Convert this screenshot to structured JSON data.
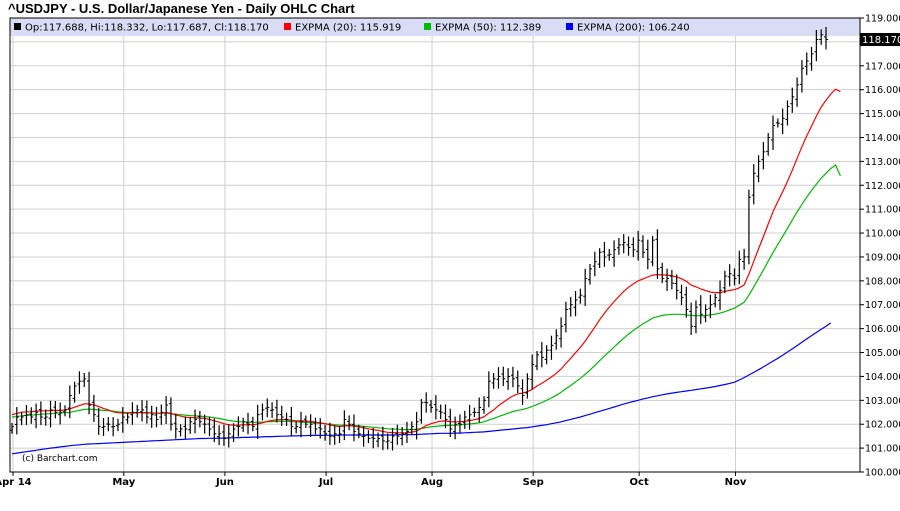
{
  "chart_data": {
    "type": "ohlc",
    "title": "^USDJPY - U.S. Dollar/Japanese Yen - Daily OHLC Chart",
    "legend": {
      "ohlc": "Op:117.688, Hi:118.332, Lo:117.687, Cl:118.170",
      "series": [
        {
          "label": "EXPMA (20): 115.919",
          "color": "#ff0000"
        },
        {
          "label": "EXPMA (50): 112.389",
          "color": "#00bb00"
        },
        {
          "label": "EXPMA (200): 106.240",
          "color": "#0000ff"
        }
      ]
    },
    "last_price": "118.170",
    "credit": "(c) Barchart.com",
    "ylim": [
      100.0,
      119.0
    ],
    "y_ticks": [
      "100.000",
      "101.000",
      "102.000",
      "103.000",
      "104.000",
      "105.000",
      "106.000",
      "107.000",
      "108.000",
      "109.000",
      "110.000",
      "111.000",
      "112.000",
      "113.000",
      "114.000",
      "115.000",
      "116.000",
      "117.000",
      "118.000",
      "119.000"
    ],
    "months": [
      "Apr 14",
      "May",
      "Jun",
      "Jul",
      "Aug",
      "Sep",
      "Oct",
      "Nov"
    ],
    "month_start_index": [
      0,
      23,
      44,
      65,
      87,
      108,
      130,
      150
    ],
    "n_bars": 170,
    "close": [
      101.9,
      102.3,
      102.3,
      102.4,
      102.3,
      102.5,
      102.3,
      102.3,
      102.6,
      102.5,
      102.5,
      102.6,
      103.2,
      103.6,
      103.8,
      103.9,
      102.8,
      102.4,
      101.9,
      101.9,
      102.0,
      101.9,
      102.0,
      102.3,
      102.3,
      102.5,
      102.6,
      102.6,
      102.3,
      102.4,
      102.2,
      102.5,
      102.8,
      102.0,
      101.8,
      101.8,
      101.8,
      102.1,
      102.2,
      102.1,
      102.0,
      101.8,
      101.6,
      101.6,
      101.4,
      101.6,
      101.8,
      101.9,
      102.1,
      102.0,
      101.9,
      102.4,
      102.6,
      102.7,
      102.6,
      102.4,
      102.3,
      102.2,
      101.9,
      101.9,
      102.1,
      102.0,
      102.0,
      101.8,
      101.8,
      101.6,
      101.5,
      101.6,
      101.6,
      102.2,
      102.0,
      101.7,
      101.6,
      101.5,
      101.4,
      101.4,
      101.4,
      101.3,
      101.3,
      101.5,
      101.5,
      101.6,
      101.7,
      101.9,
      102.1,
      102.9,
      102.9,
      102.7,
      102.6,
      102.5,
      102.2,
      101.8,
      102.0,
      102.0,
      102.3,
      102.4,
      102.5,
      102.7,
      103.0,
      103.8,
      103.9,
      104.0,
      103.9,
      104.0,
      103.9,
      103.6,
      103.2,
      103.9,
      104.5,
      104.9,
      104.8,
      105.1,
      105.3,
      105.7,
      106.1,
      106.8,
      107.0,
      107.2,
      107.4,
      108.1,
      108.5,
      108.8,
      109.2,
      109.0,
      109.1,
      109.3,
      109.5,
      109.6,
      109.4,
      109.3,
      109.7,
      109.2,
      108.9,
      109.7,
      108.5,
      108.1,
      108.1,
      107.9,
      107.6,
      107.3,
      106.8,
      106.1,
      106.9,
      106.6,
      106.8,
      107.0,
      107.3,
      107.6,
      108.2,
      108.3,
      108.1,
      108.9,
      109.0,
      111.5,
      112.5,
      113.0,
      113.4,
      114.0,
      114.5,
      114.6,
      114.8,
      115.3,
      115.7,
      116.2,
      116.9,
      117.2,
      117.5,
      118.1,
      118.3,
      118.1,
      117.9,
      117.6,
      118.2,
      118.17
    ],
    "expma20": [
      102.4,
      102.45,
      102.5,
      102.52,
      102.52,
      102.55,
      102.56,
      102.56,
      102.57,
      102.58,
      102.58,
      102.59,
      102.64,
      102.71,
      102.78,
      102.85,
      102.85,
      102.81,
      102.74,
      102.66,
      102.6,
      102.52,
      102.48,
      102.47,
      102.46,
      102.47,
      102.48,
      102.49,
      102.48,
      102.47,
      102.46,
      102.46,
      102.49,
      102.45,
      102.39,
      102.34,
      102.29,
      102.28,
      102.27,
      102.26,
      102.24,
      102.2,
      102.14,
      102.09,
      102.02,
      101.98,
      101.96,
      101.96,
      101.97,
      101.98,
      101.97,
      102.01,
      102.06,
      102.12,
      102.16,
      102.18,
      102.19,
      102.19,
      102.16,
      102.14,
      102.14,
      102.13,
      102.12,
      102.09,
      102.06,
      102.02,
      101.97,
      101.93,
      101.9,
      101.93,
      101.94,
      101.92,
      101.89,
      101.85,
      101.81,
      101.77,
      101.74,
      101.7,
      101.66,
      101.65,
      101.64,
      101.64,
      101.64,
      101.67,
      101.71,
      101.83,
      101.94,
      102.02,
      102.08,
      102.13,
      102.14,
      102.11,
      102.1,
      102.1,
      102.12,
      102.15,
      102.19,
      102.24,
      102.31,
      102.46,
      102.6,
      102.78,
      102.92,
      103.06,
      103.18,
      103.27,
      103.3,
      103.36,
      103.46,
      103.6,
      103.71,
      103.84,
      103.98,
      104.13,
      104.31,
      104.54,
      104.76,
      104.99,
      105.22,
      105.48,
      105.77,
      106.06,
      106.37,
      106.64,
      106.9,
      107.13,
      107.35,
      107.56,
      107.73,
      107.87,
      108.0,
      108.08,
      108.16,
      108.24,
      108.26,
      108.25,
      108.24,
      108.21,
      108.16,
      108.09,
      107.98,
      107.82,
      107.75,
      107.66,
      107.59,
      107.53,
      107.51,
      107.51,
      107.56,
      107.6,
      107.63,
      107.71,
      107.83,
      108.28,
      108.82,
      109.35,
      109.85,
      110.38,
      110.89,
      111.32,
      111.73,
      112.16,
      112.63,
      113.13,
      113.61,
      114.06,
      114.48,
      114.9,
      115.27,
      115.56,
      115.82,
      116.02,
      115.92
    ],
    "expma50": [
      102.3,
      102.32,
      102.35,
      102.37,
      102.38,
      102.4,
      102.42,
      102.43,
      102.44,
      102.46,
      102.47,
      102.48,
      102.5,
      102.54,
      102.58,
      102.62,
      102.63,
      102.62,
      102.6,
      102.58,
      102.57,
      102.55,
      102.52,
      102.5,
      102.49,
      102.49,
      102.48,
      102.48,
      102.47,
      102.47,
      102.46,
      102.46,
      102.47,
      102.44,
      102.42,
      102.4,
      102.38,
      102.36,
      102.35,
      102.34,
      102.32,
      102.3,
      102.27,
      102.24,
      102.2,
      102.16,
      102.13,
      102.11,
      102.1,
      102.09,
      102.08,
      102.08,
      102.09,
      102.1,
      102.11,
      102.12,
      102.12,
      102.12,
      102.11,
      102.1,
      102.09,
      102.08,
      102.07,
      102.05,
      102.04,
      102.02,
      102.0,
      101.98,
      101.96,
      101.96,
      101.96,
      101.95,
      101.93,
      101.91,
      101.89,
      101.87,
      101.85,
      101.83,
      101.81,
      101.8,
      101.79,
      101.78,
      101.77,
      101.78,
      101.79,
      101.82,
      101.86,
      101.89,
      101.91,
      101.93,
      101.95,
      101.95,
      101.96,
      101.97,
      101.99,
      102.01,
      102.03,
      102.06,
      102.1,
      102.17,
      102.24,
      102.32,
      102.39,
      102.46,
      102.53,
      102.58,
      102.62,
      102.67,
      102.74,
      102.82,
      102.91,
      103.0,
      103.1,
      103.21,
      103.34,
      103.48,
      103.62,
      103.77,
      103.92,
      104.09,
      104.27,
      104.46,
      104.66,
      104.85,
      105.04,
      105.23,
      105.42,
      105.6,
      105.77,
      105.92,
      106.07,
      106.2,
      106.32,
      106.44,
      106.5,
      106.55,
      106.58,
      106.6,
      106.6,
      106.6,
      106.58,
      106.55,
      106.54,
      106.54,
      106.55,
      106.58,
      106.61,
      106.65,
      106.71,
      106.79,
      106.86,
      106.98,
      107.1,
      107.4,
      107.75,
      108.1,
      108.45,
      108.82,
      109.18,
      109.52,
      109.86,
      110.2,
      110.54,
      110.88,
      111.2,
      111.5,
      111.78,
      112.05,
      112.3,
      112.5,
      112.7,
      112.85,
      112.39
    ],
    "expma200": [
      100.76,
      100.79,
      100.82,
      100.85,
      100.88,
      100.91,
      100.94,
      100.97,
      101.0,
      101.02,
      101.05,
      101.07,
      101.1,
      101.12,
      101.14,
      101.16,
      101.17,
      101.18,
      101.19,
      101.2,
      101.21,
      101.22,
      101.23,
      101.24,
      101.25,
      101.26,
      101.27,
      101.28,
      101.29,
      101.3,
      101.31,
      101.32,
      101.33,
      101.34,
      101.35,
      101.36,
      101.37,
      101.38,
      101.39,
      101.4,
      101.4,
      101.41,
      101.41,
      101.42,
      101.42,
      101.43,
      101.43,
      101.44,
      101.45,
      101.45,
      101.46,
      101.46,
      101.47,
      101.48,
      101.48,
      101.49,
      101.5,
      101.5,
      101.51,
      101.51,
      101.52,
      101.52,
      101.53,
      101.53,
      101.53,
      101.54,
      101.54,
      101.54,
      101.55,
      101.55,
      101.55,
      101.55,
      101.55,
      101.55,
      101.55,
      101.55,
      101.55,
      101.55,
      101.55,
      101.55,
      101.56,
      101.56,
      101.56,
      101.56,
      101.57,
      101.58,
      101.59,
      101.6,
      101.61,
      101.62,
      101.62,
      101.62,
      101.63,
      101.63,
      101.64,
      101.65,
      101.66,
      101.67,
      101.68,
      101.7,
      101.72,
      101.74,
      101.76,
      101.78,
      101.8,
      101.82,
      101.84,
      101.86,
      101.89,
      101.92,
      101.95,
      101.98,
      102.02,
      102.06,
      102.1,
      102.15,
      102.2,
      102.25,
      102.3,
      102.36,
      102.42,
      102.48,
      102.54,
      102.6,
      102.66,
      102.72,
      102.78,
      102.84,
      102.9,
      102.95,
      103.0,
      103.06,
      103.1,
      103.15,
      103.19,
      103.23,
      103.27,
      103.3,
      103.33,
      103.36,
      103.39,
      103.42,
      103.45,
      103.48,
      103.51,
      103.54,
      103.58,
      103.62,
      103.66,
      103.71,
      103.76,
      103.85,
      103.95,
      104.06,
      104.17,
      104.28,
      104.4,
      104.52,
      104.64,
      104.76,
      104.89,
      105.02,
      105.15,
      105.29,
      105.43,
      105.57,
      105.71,
      105.84,
      105.97,
      106.1,
      106.24
    ]
  }
}
